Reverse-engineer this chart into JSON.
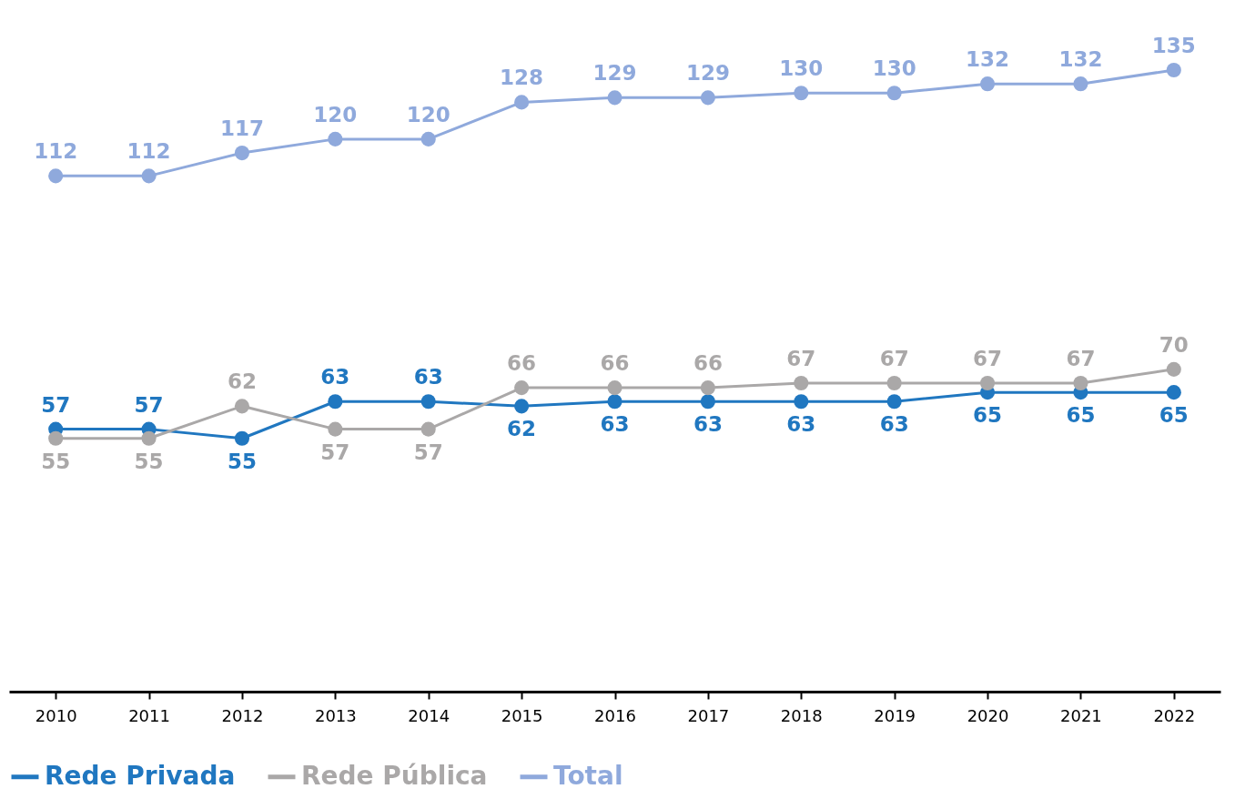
{
  "chart_data": {
    "type": "line",
    "categories": [
      "2010",
      "2011",
      "2012",
      "2013",
      "2014",
      "2015",
      "2016",
      "2017",
      "2018",
      "2019",
      "2020",
      "2021",
      "2022"
    ],
    "series": [
      {
        "name": "Rede Privada",
        "color": "#2077c0",
        "values": [
          57,
          57,
          55,
          63,
          63,
          62,
          63,
          63,
          63,
          63,
          65,
          65,
          65
        ]
      },
      {
        "name": "Rede Pública",
        "color": "#aaa8a8",
        "values": [
          55,
          55,
          62,
          57,
          57,
          66,
          66,
          66,
          67,
          67,
          67,
          67,
          70
        ]
      },
      {
        "name": "Total",
        "color": "#8fa9dc",
        "values": [
          112,
          112,
          117,
          120,
          120,
          128,
          129,
          129,
          130,
          130,
          132,
          132,
          135
        ]
      }
    ],
    "data_labels": true,
    "legend": "bottom",
    "marker": "circle",
    "line_style": "solid",
    "grid": false,
    "tick_labels": "x"
  }
}
